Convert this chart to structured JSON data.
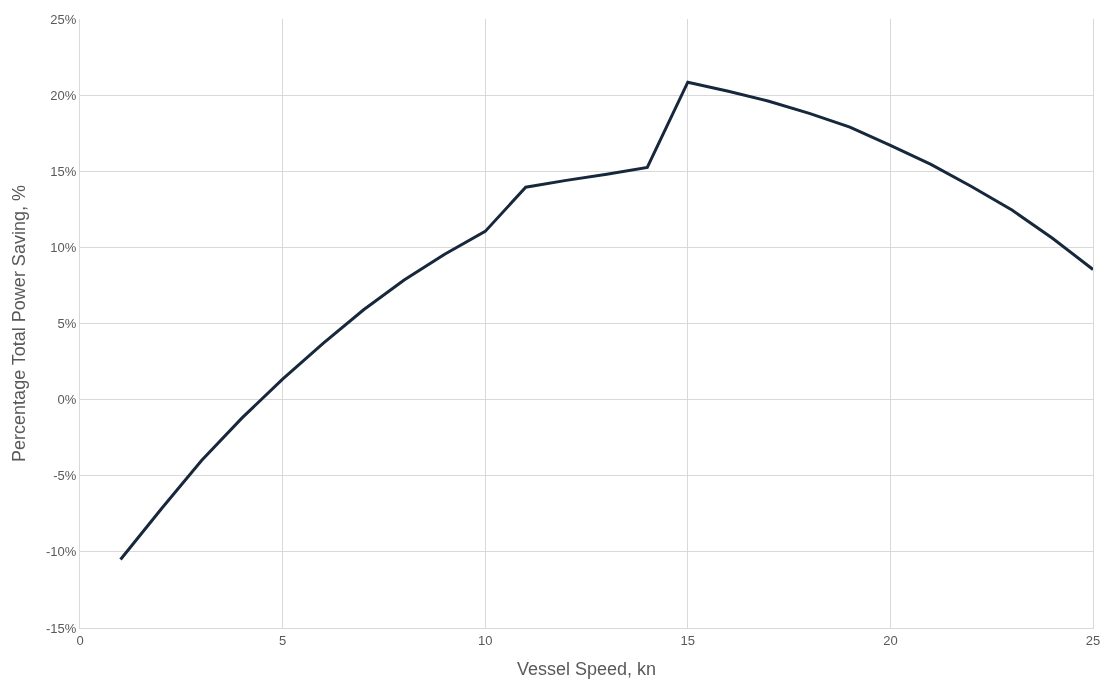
{
  "chart_data": {
    "type": "line",
    "xlabel": "Vessel Speed, kn",
    "ylabel": "Percentage Total Power Saving, %",
    "x": [
      1,
      2,
      3,
      4,
      5,
      6,
      7,
      8,
      9,
      10,
      11,
      12,
      13,
      14,
      15,
      16,
      17,
      18,
      19,
      20,
      21,
      22,
      23,
      24,
      25
    ],
    "series": [
      {
        "color": "#17283d",
        "values": [
          -10.5,
          -7.2,
          -4.0,
          -1.2,
          1.35,
          3.7,
          5.9,
          7.85,
          9.55,
          11.05,
          13.95,
          14.4,
          14.8,
          15.25,
          20.85,
          20.25,
          19.6,
          18.8,
          17.9,
          16.7,
          15.45,
          14.0,
          12.45,
          10.6,
          8.55
        ]
      }
    ],
    "xlim": [
      0,
      25
    ],
    "xticks": [
      0,
      5,
      10,
      15,
      20,
      25
    ],
    "ylim": [
      -15,
      25
    ],
    "yticks": [
      {
        "value": -15,
        "label": "-15%"
      },
      {
        "value": -10,
        "label": "-10%"
      },
      {
        "value": -5,
        "label": "-5%"
      },
      {
        "value": 0,
        "label": "0%"
      },
      {
        "value": 5,
        "label": "5%"
      },
      {
        "value": 10,
        "label": "10%"
      },
      {
        "value": 15,
        "label": "15%"
      },
      {
        "value": 20,
        "label": "20%"
      },
      {
        "value": 25,
        "label": "25%"
      }
    ],
    "grid": true,
    "marker": "none",
    "line_style": "solid"
  }
}
